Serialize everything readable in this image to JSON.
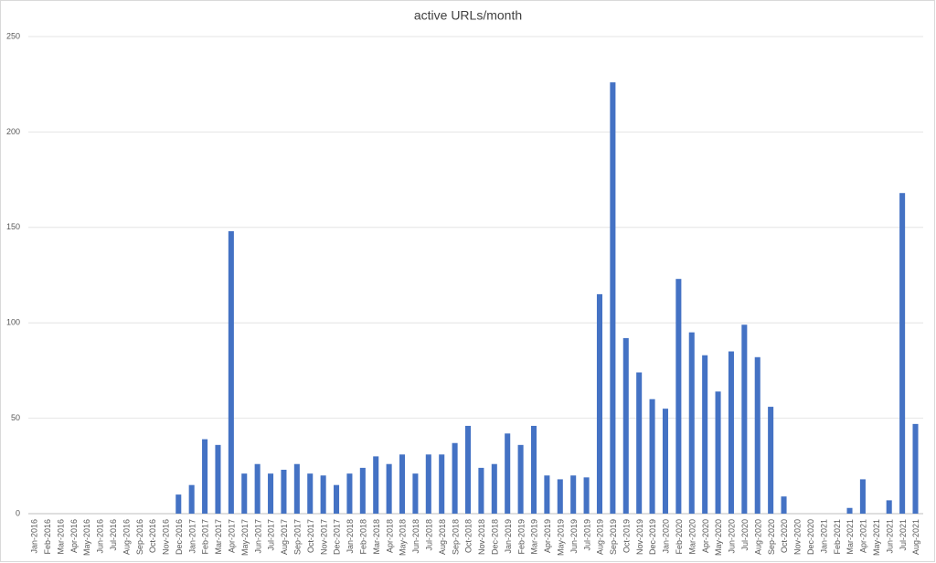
{
  "chart_data": {
    "type": "bar",
    "title": "active URLs/month",
    "categories": [
      "Jan-2016",
      "Feb-2016",
      "Mar-2016",
      "Apr-2016",
      "May-2016",
      "Jun-2016",
      "Jul-2016",
      "Aug-2016",
      "Sep-2016",
      "Oct-2016",
      "Nov-2016",
      "Dec-2016",
      "Jan-2017",
      "Feb-2017",
      "Mar-2017",
      "Apr-2017",
      "May-2017",
      "Jun-2017",
      "Jul-2017",
      "Aug-2017",
      "Sep-2017",
      "Oct-2017",
      "Nov-2017",
      "Dec-2017",
      "Jan-2018",
      "Feb-2018",
      "Mar-2018",
      "Apr-2018",
      "May-2018",
      "Jun-2018",
      "Jul-2018",
      "Aug-2018",
      "Sep-2018",
      "Oct-2018",
      "Nov-2018",
      "Dec-2018",
      "Jan-2019",
      "Feb-2019",
      "Mar-2019",
      "Apr-2019",
      "May-2019",
      "Jun-2019",
      "Jul-2019",
      "Aug-2019",
      "Sep-2019",
      "Oct-2019",
      "Nov-2019",
      "Dec-2019",
      "Jan-2020",
      "Feb-2020",
      "Mar-2020",
      "Apr-2020",
      "May-2020",
      "Jun-2020",
      "Jul-2020",
      "Aug-2020",
      "Sep-2020",
      "Oct-2020",
      "Nov-2020",
      "Dec-2020",
      "Jan-2021",
      "Feb-2021",
      "Mar-2021",
      "Apr-2021",
      "May-2021",
      "Jun-2021",
      "Jul-2021",
      "Aug-2021"
    ],
    "values": [
      0,
      0,
      0,
      0,
      0,
      0,
      0,
      0,
      0,
      0,
      0,
      10,
      15,
      39,
      36,
      148,
      21,
      26,
      21,
      23,
      26,
      21,
      20,
      15,
      21,
      24,
      30,
      26,
      31,
      21,
      31,
      31,
      37,
      46,
      24,
      26,
      42,
      36,
      46,
      20,
      18,
      20,
      19,
      115,
      226,
      92,
      74,
      60,
      55,
      123,
      95,
      83,
      64,
      85,
      99,
      82,
      56,
      9,
      0,
      0,
      0,
      0,
      3,
      18,
      0,
      7,
      168,
      47
    ],
    "color": "#4472c4",
    "ylim": [
      0,
      250
    ],
    "yticks": [
      0,
      50,
      100,
      150,
      200,
      250
    ],
    "grid": true
  }
}
